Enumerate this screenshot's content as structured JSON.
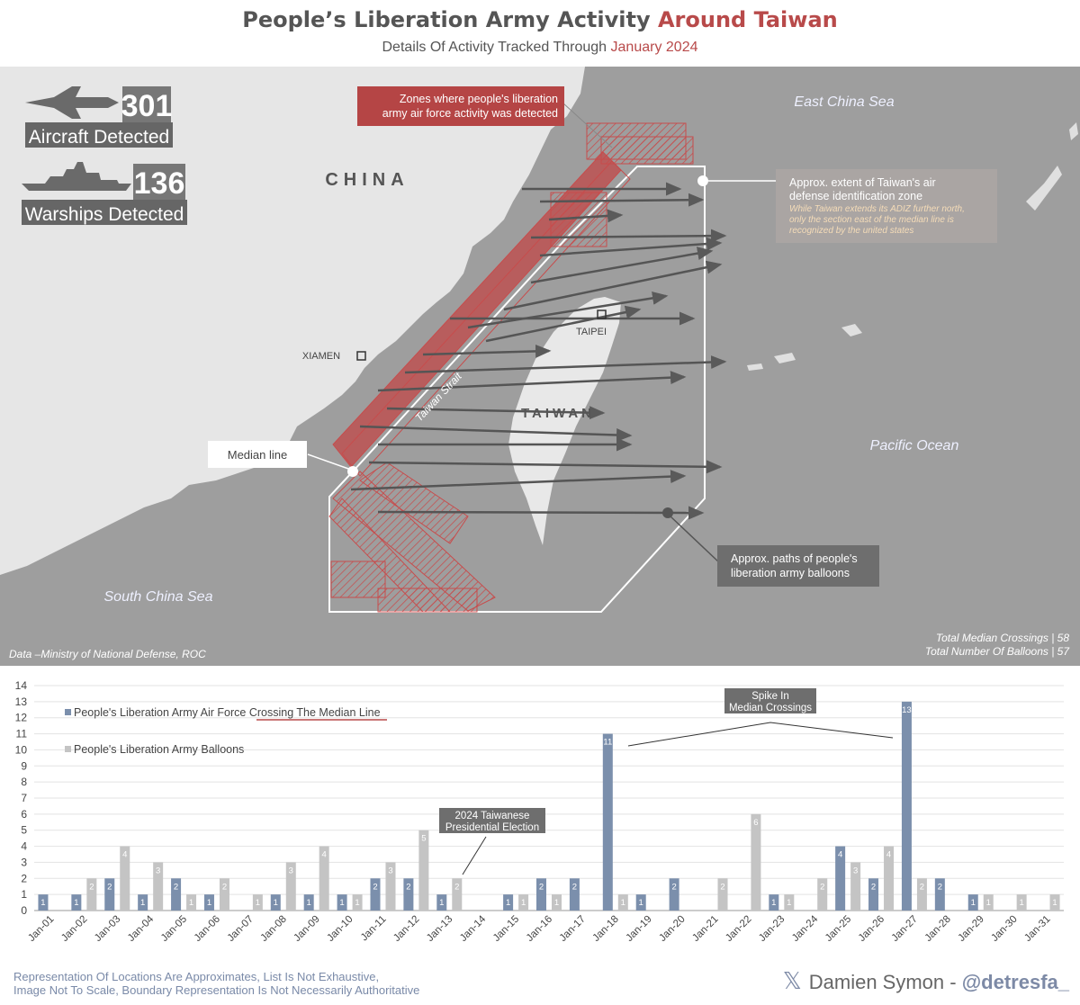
{
  "header": {
    "title_main": "People’s Liberation Army Activity",
    "title_accent": "Around Taiwan",
    "subtitle_main": "Details Of Activity Tracked Through",
    "subtitle_accent": "January 2024"
  },
  "map": {
    "aircraft_count": "301",
    "aircraft_label": "Aircraft Detected",
    "warship_count": "136",
    "warship_label": "Warships Detected",
    "china_label": "CHINA",
    "taiwan_label": "TAIWAN",
    "xiamen_label": "XIAMEN",
    "taipei_label": "TAIPEI",
    "strait_label": "Taiwan Strait",
    "east_china_sea": "East China Sea",
    "south_china_sea": "South China Sea",
    "pacific_ocean": "Pacific Ocean",
    "zones_callout": [
      "Zones where people's liberation",
      "army air force activity was detected"
    ],
    "adiz_callout_title": [
      "Approx. extent of Taiwan's air",
      "defense identification zone"
    ],
    "adiz_callout_note": [
      "While Taiwan extends its ADIZ further north,",
      "only the section east of the median line is",
      "recognized by the united states"
    ],
    "median_callout": "Median line",
    "balloon_callout": [
      "Approx. paths of people's",
      "liberation army balloons"
    ],
    "source": "Data –Ministry of National Defense, ROC",
    "total_crossings": "Total Median Crossings | 58",
    "total_balloons": "Total Number Of Balloons | 57"
  },
  "chart_data": {
    "type": "bar",
    "categories": [
      "Jan-01",
      "Jan-02",
      "Jan-03",
      "Jan-04",
      "Jan-05",
      "Jan-06",
      "Jan-07",
      "Jan-08",
      "Jan-09",
      "Jan-10",
      "Jan-11",
      "Jan-12",
      "Jan-13",
      "Jan-14",
      "Jan-15",
      "Jan-16",
      "Jan-17",
      "Jan-18",
      "Jan-19",
      "Jan-20",
      "Jan-21",
      "Jan-22",
      "Jan-23",
      "Jan-24",
      "Jan-25",
      "Jan-26",
      "Jan-27",
      "Jan-28",
      "Jan-29",
      "Jan-30",
      "Jan-31"
    ],
    "series": [
      {
        "name": "People's Liberation Army Air Force Crossing The Median Line",
        "color": "#7b8fac",
        "values": [
          1,
          1,
          2,
          1,
          2,
          1,
          0,
          1,
          1,
          1,
          2,
          2,
          1,
          0,
          1,
          2,
          2,
          11,
          1,
          2,
          0,
          0,
          1,
          0,
          4,
          2,
          13,
          2,
          1,
          0,
          0
        ]
      },
      {
        "name": "People's Liberation Army Balloons",
        "color": "#c4c4c4",
        "values": [
          0,
          2,
          4,
          3,
          1,
          2,
          1,
          3,
          4,
          1,
          3,
          5,
          2,
          0,
          1,
          1,
          0,
          1,
          0,
          0,
          2,
          6,
          1,
          2,
          3,
          4,
          2,
          0,
          1,
          1,
          1
        ]
      }
    ],
    "ylim": [
      0,
      14
    ],
    "yticks": [
      0,
      1,
      2,
      3,
      4,
      5,
      6,
      7,
      8,
      9,
      10,
      11,
      12,
      13,
      14
    ],
    "grid": true,
    "legend_placement": "top-left",
    "annotations": [
      {
        "text": [
          "2024 Taiwanese",
          "Presidential Election"
        ],
        "category": "Jan-13"
      },
      {
        "text": [
          "Spike In",
          "Median Crossings"
        ],
        "categories": [
          "Jan-18",
          "Jan-27"
        ]
      }
    ]
  },
  "footer": {
    "note_line1": "Representation Of Locations Are Approximates, List Is Not Exhaustive,",
    "note_line2": "Image Not To Scale, Boundary Representation Is Not Necessarily Authoritative",
    "credit_name": "Damien Symon -",
    "credit_handle": "@detresfa_",
    "x_icon": "𝕏"
  }
}
